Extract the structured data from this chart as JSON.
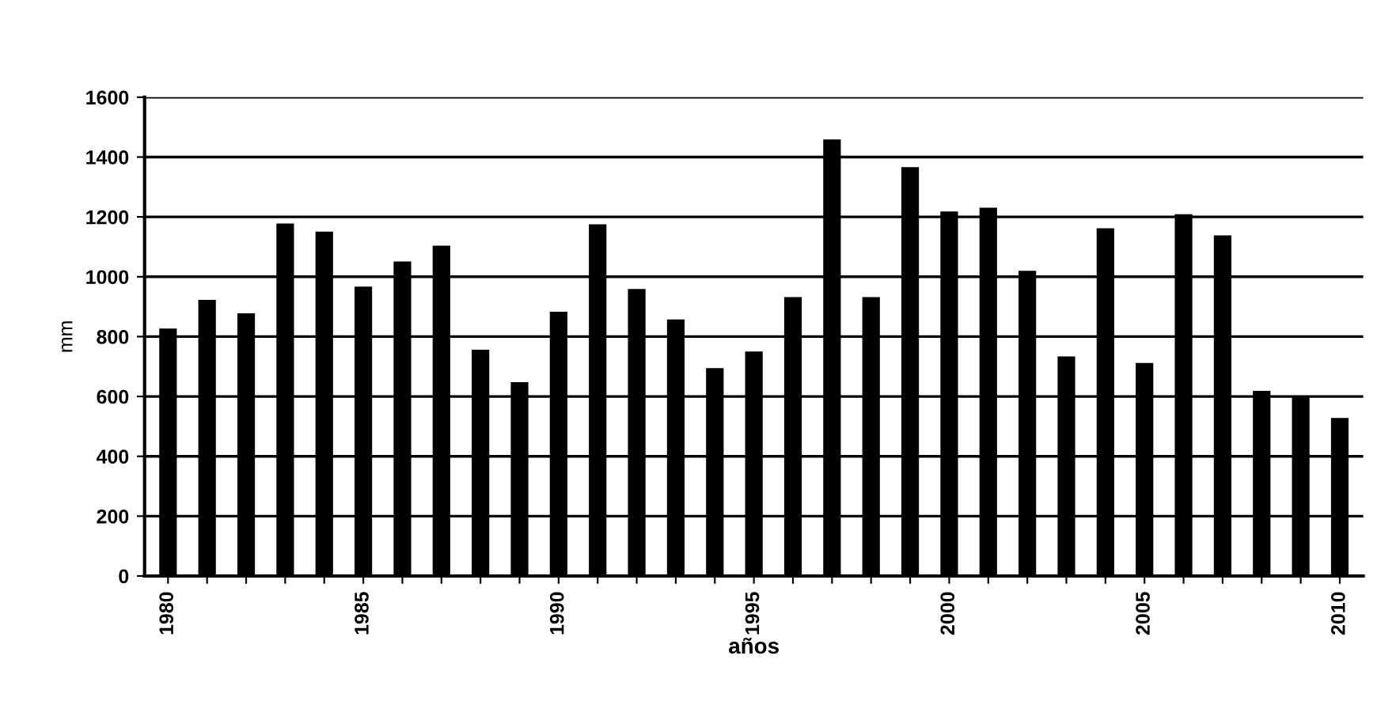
{
  "chart_data": {
    "type": "bar",
    "xlabel": "años",
    "ylabel": "mm",
    "categories": [
      "1980",
      null,
      null,
      null,
      null,
      "1985",
      null,
      null,
      null,
      null,
      "1990",
      null,
      null,
      null,
      null,
      "1995",
      null,
      null,
      null,
      null,
      "2000",
      null,
      null,
      null,
      null,
      "2005",
      null,
      null,
      null,
      null,
      "2010"
    ],
    "values": [
      827,
      923,
      878,
      1178,
      1151,
      967,
      1051,
      1104,
      756,
      648,
      883,
      1175,
      959,
      857,
      695,
      750,
      932,
      1459,
      932,
      1366,
      1218,
      1231,
      1020,
      734,
      1162,
      712,
      1209,
      1138,
      619,
      602,
      528
    ],
    "color": "#000000",
    "ylim": [
      0,
      1600
    ],
    "yticks": [
      0,
      200,
      400,
      600,
      800,
      1000,
      1200,
      1400,
      1600
    ],
    "grid": "y"
  }
}
